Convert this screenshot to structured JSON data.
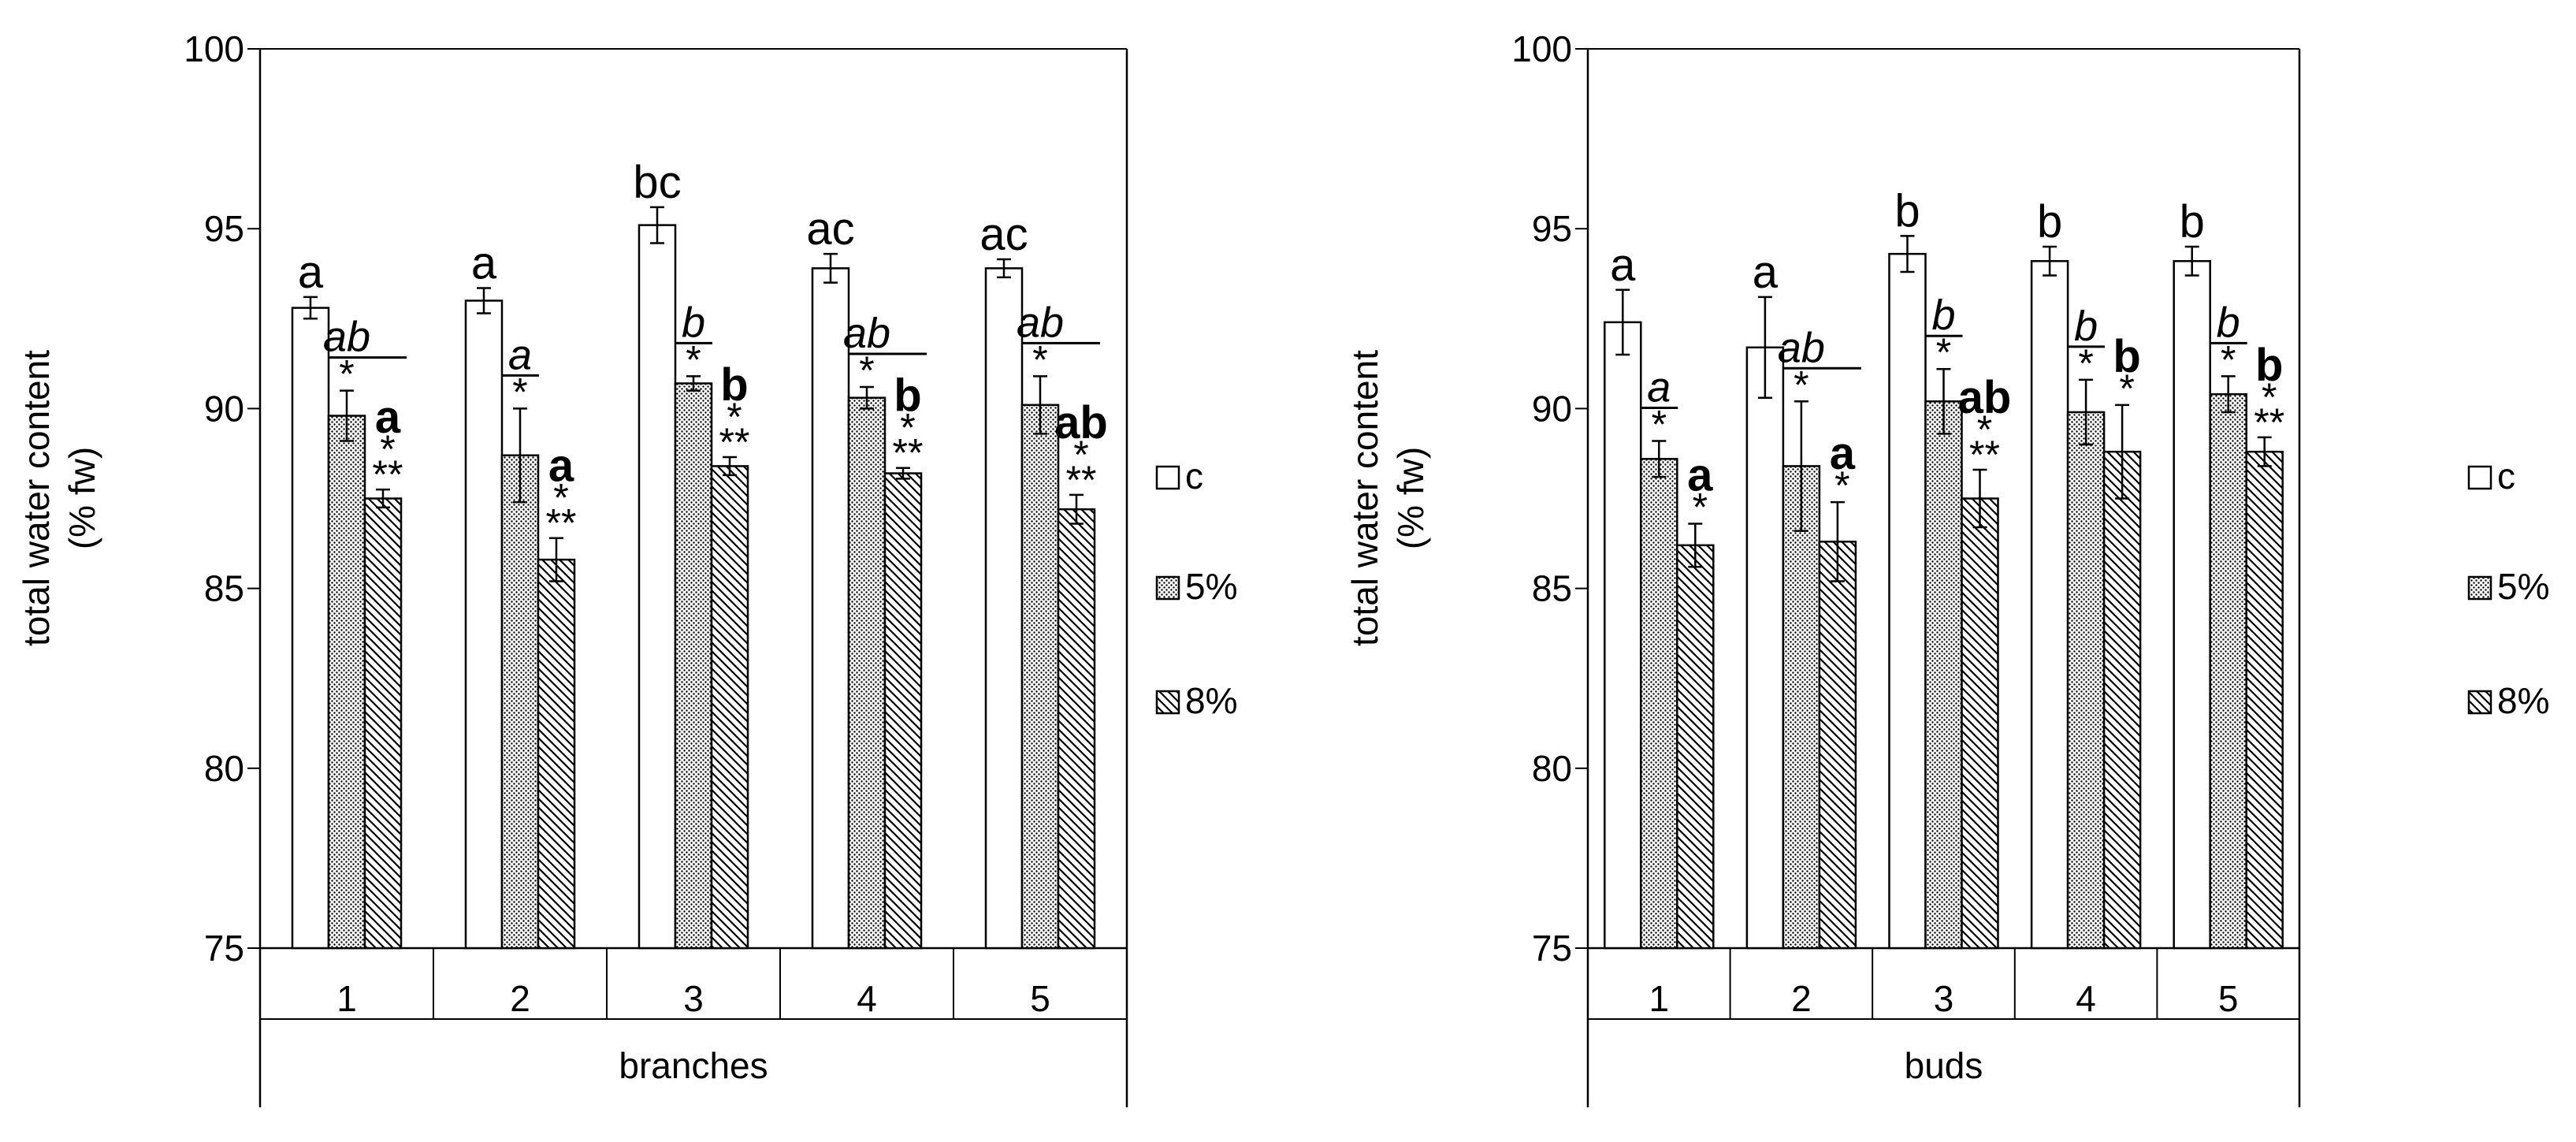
{
  "chart_data": [
    {
      "type": "bar",
      "xlabel": "branches",
      "ylabel": "total water content",
      "ylabel_unit": "(% fw)",
      "ylim": [
        75,
        100
      ],
      "yticks": [
        "75",
        "80",
        "85",
        "90",
        "95",
        "100"
      ],
      "categories": [
        "1",
        "2",
        "3",
        "4",
        "5"
      ],
      "legend": [
        "c",
        "5%",
        "8%"
      ],
      "series": [
        {
          "name": "c",
          "values": [
            92.8,
            93.0,
            95.1,
            93.9,
            93.9
          ],
          "errors": [
            0.3,
            0.35,
            0.5,
            0.4,
            0.25
          ]
        },
        {
          "name": "5%",
          "values": [
            89.8,
            88.7,
            90.7,
            90.3,
            90.1
          ],
          "errors": [
            0.7,
            1.3,
            0.2,
            0.3,
            0.8
          ]
        },
        {
          "name": "8%",
          "values": [
            87.5,
            85.8,
            88.4,
            88.2,
            87.2
          ],
          "errors": [
            0.25,
            0.6,
            0.25,
            0.15,
            0.4
          ]
        }
      ],
      "group_letters_c": [
        "a",
        "a",
        "bc",
        "ac",
        "ac"
      ],
      "group_letters_5": [
        "ab",
        "a",
        "b",
        "ab",
        "ab"
      ],
      "group_letters_8": [
        "a",
        "a",
        "b",
        "b",
        "ab"
      ],
      "stars_5": [
        "*",
        "*",
        "*",
        "*",
        "*"
      ],
      "stars_8_top": [
        "*",
        "*",
        "*",
        "*",
        "*"
      ],
      "stars_8_bottom": [
        "**",
        "**",
        "**",
        "**",
        "**"
      ],
      "bracket_5_8": [
        true,
        false,
        false,
        true,
        true
      ]
    },
    {
      "type": "bar",
      "xlabel": "buds",
      "ylabel": "total water content",
      "ylabel_unit": "(% fw)",
      "ylim": [
        75,
        100
      ],
      "yticks": [
        "75",
        "80",
        "85",
        "90",
        "95",
        "100"
      ],
      "categories": [
        "1",
        "2",
        "3",
        "4",
        "5"
      ],
      "legend": [
        "c",
        "5%",
        "8%"
      ],
      "series": [
        {
          "name": "c",
          "values": [
            92.4,
            91.7,
            94.3,
            94.1,
            94.1
          ],
          "errors": [
            0.9,
            1.4,
            0.5,
            0.4,
            0.4
          ]
        },
        {
          "name": "5%",
          "values": [
            88.6,
            88.4,
            90.2,
            89.9,
            90.4
          ],
          "errors": [
            0.5,
            1.8,
            0.9,
            0.9,
            0.5
          ]
        },
        {
          "name": "8%",
          "values": [
            86.2,
            86.3,
            87.5,
            88.8,
            88.8
          ],
          "errors": [
            0.6,
            1.1,
            0.8,
            1.3,
            0.4
          ]
        }
      ],
      "group_letters_c": [
        "a",
        "a",
        "b",
        "b",
        "b"
      ],
      "group_letters_5": [
        "a",
        "ab",
        "b",
        "b",
        "b"
      ],
      "group_letters_8": [
        "a",
        "a",
        "ab",
        "b",
        "b"
      ],
      "stars_5": [
        "*",
        "*",
        "*",
        "*",
        "*"
      ],
      "stars_8_top": [
        "*",
        "*",
        "*",
        "*",
        "*"
      ],
      "stars_8_bottom": [
        "",
        "",
        "**",
        "",
        "**"
      ],
      "bracket_5_8": [
        false,
        true,
        false,
        false,
        false
      ]
    }
  ]
}
